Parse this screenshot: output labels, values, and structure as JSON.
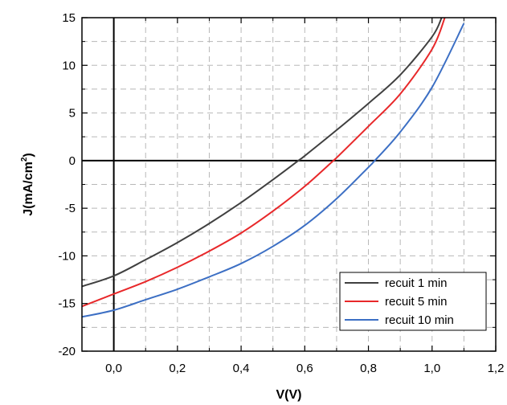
{
  "chart_data": {
    "type": "line",
    "xlabel": "V(V)",
    "ylabel_main": "J(mA/cm",
    "ylabel_sup": "2",
    "ylabel_end": ")",
    "xlim": [
      -0.1,
      1.2
    ],
    "ylim": [
      -20,
      15
    ],
    "x_ticks": [
      0.0,
      0.2,
      0.4,
      0.6,
      0.8,
      1.0,
      1.2
    ],
    "x_tick_labels": [
      "0,0",
      "0,2",
      "0,4",
      "0,6",
      "0,8",
      "1,0",
      "1,2"
    ],
    "y_ticks": [
      -20,
      -15,
      -10,
      -5,
      0,
      5,
      10,
      15
    ],
    "y_tick_labels": [
      "-20",
      "-15",
      "-10",
      "-5",
      "0",
      "5",
      "10",
      "15"
    ],
    "grid": true,
    "grid_style": "dashed",
    "zero_lines": true,
    "legend_position": "bottom-right",
    "series": [
      {
        "name": "recuit 1 min",
        "color": "#404040",
        "x": [
          -0.1,
          0.0,
          0.1,
          0.2,
          0.3,
          0.4,
          0.5,
          0.58,
          0.6,
          0.7,
          0.8,
          0.9,
          1.0,
          1.03
        ],
        "y": [
          -13.2,
          -12.1,
          -10.4,
          -8.6,
          -6.6,
          -4.4,
          -2.0,
          0.0,
          0.5,
          3.2,
          6.0,
          9.0,
          13.0,
          15.0
        ]
      },
      {
        "name": "recuit 5 min",
        "color": "#e8282a",
        "x": [
          -0.1,
          0.0,
          0.1,
          0.2,
          0.3,
          0.4,
          0.5,
          0.6,
          0.69,
          0.7,
          0.8,
          0.9,
          1.0,
          1.04
        ],
        "y": [
          -15.3,
          -14.0,
          -12.7,
          -11.2,
          -9.5,
          -7.6,
          -5.3,
          -2.7,
          0.0,
          0.3,
          3.6,
          7.0,
          11.7,
          15.0
        ]
      },
      {
        "name": "recuit 10 min",
        "color": "#3c6fc4",
        "x": [
          -0.1,
          0.0,
          0.1,
          0.2,
          0.3,
          0.4,
          0.5,
          0.6,
          0.7,
          0.8,
          0.82,
          0.9,
          1.0,
          1.1
        ],
        "y": [
          -16.4,
          -15.7,
          -14.6,
          -13.5,
          -12.2,
          -10.8,
          -9.0,
          -6.8,
          -4.0,
          -0.7,
          0.0,
          3.0,
          7.7,
          14.4
        ]
      }
    ]
  }
}
